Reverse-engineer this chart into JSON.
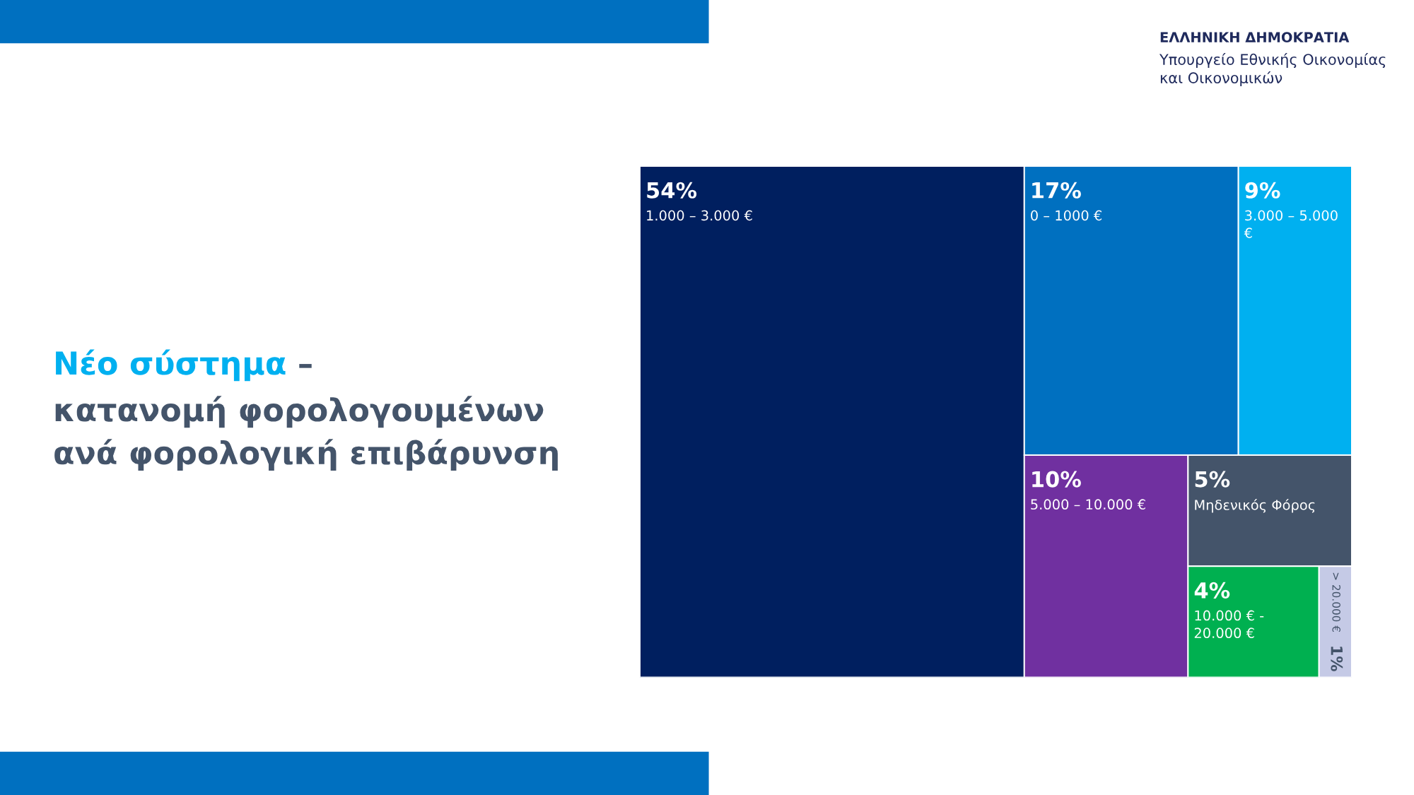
{
  "chart_data": {
    "type": "other",
    "title": "Νέο σύστημα",
    "subtitle": "– κατανομή φορολογουμένων ανά φορολογική επιβάρυνση",
    "annotations": [
      "ΕΛΛΗΝΙΚΗ ΔΗΜΟΚΡΑΤΙΑ",
      "Υπουργείο Εθνικής Οικονομίας και Οικονομικών"
    ],
    "categories": [
      "1.000 – 3.000 €",
      "0 – 1000 €",
      "3.000 – 5.000 €",
      "5.000 – 10.000 €",
      "Μηδενικός Φόρος",
      "10.000 € - 20.000 €",
      "> 20.000 €"
    ],
    "values": [
      54,
      17,
      9,
      10,
      5,
      4,
      1
    ],
    "value_labels": [
      "54%",
      "17%",
      "9%",
      "10%",
      "5%",
      "4%",
      "1%"
    ],
    "colors": [
      "#001f5f",
      "#0070c0",
      "#00b0f0",
      "#7030a0",
      "#44546a",
      "#00b050",
      "#c5cae6"
    ]
  }
}
